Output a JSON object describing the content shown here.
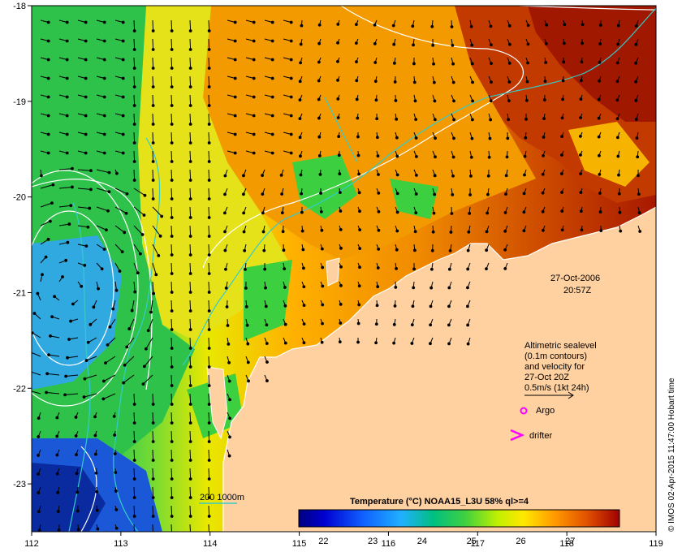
{
  "map": {
    "lon_range": [
      112,
      119
    ],
    "lat_range": [
      -23.5,
      -18
    ],
    "lon_ticks": [
      "112",
      "113",
      "114",
      "115",
      "116",
      "117",
      "118",
      "119"
    ],
    "lat_ticks": [
      "-18",
      "-19",
      "-20",
      "-21",
      "-22",
      "-23"
    ]
  },
  "timestamp": {
    "date": "27-Oct-2006",
    "time": "20:57Z"
  },
  "legend_note": {
    "line1": "Altimetric sealevel",
    "line2": "(0.1m contours)",
    "line3": "and velocity for",
    "line4": "27-Oct 20Z",
    "line5": "0.5m/s (1kt 24h)"
  },
  "markers": {
    "argo_label": "Argo",
    "drifter_label": "drifter"
  },
  "depth_legend": {
    "label": "200  1000m"
  },
  "colorbar": {
    "title": "Temperature (°C) NOAA15_L3U 58% ql>=4",
    "ticks": [
      "22",
      "23",
      "24",
      "25",
      "26",
      "27"
    ],
    "range": [
      21.5,
      28
    ]
  },
  "credit": "© IMOS 02-Apr-2015 11:47:00 Hobart time",
  "colors": {
    "land": "#ffd0a0",
    "contour": "#ffffff",
    "isobath": "#33cccc",
    "marker": "#ff00ff"
  }
}
